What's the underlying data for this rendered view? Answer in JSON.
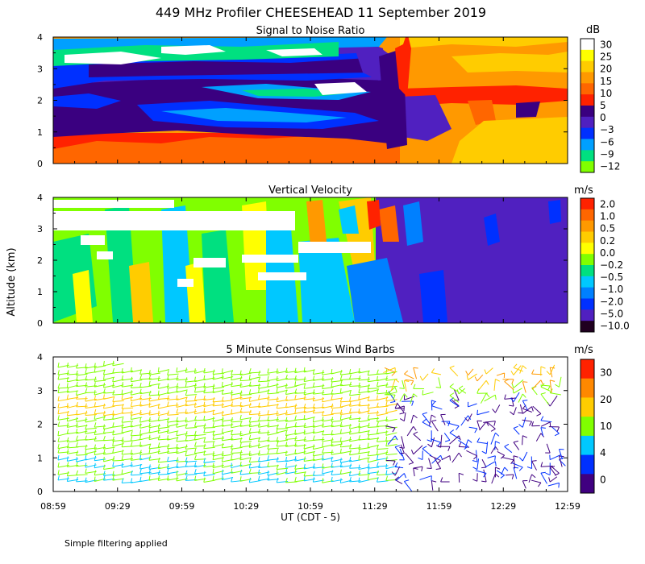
{
  "figure": {
    "title": "449 MHz Profiler CHEESEHEAD 11 September 2019",
    "ylabel": "Altitude (km)",
    "xlabel": "UT  (CDT - 5)",
    "note": "Simple filtering applied"
  },
  "chart_data": [
    {
      "type": "heatmap",
      "title": "Signal to Noise Ratio",
      "unit": "dB",
      "x_ticks": [
        "08:59",
        "09:29",
        "09:59",
        "10:29",
        "10:59",
        "11:29",
        "11:59",
        "12:29",
        "12:59"
      ],
      "x_range_hours_after_0859": [
        0,
        4
      ],
      "ylim": [
        0,
        4
      ],
      "y_ticks": [
        0,
        1,
        2,
        3,
        4
      ],
      "colorbar_labels": [
        "30",
        "25",
        "20",
        "15",
        "10",
        "5",
        "0",
        "−3",
        "−6",
        "−9",
        "−12"
      ],
      "colorbar_colors": [
        "#ffffff",
        "#ffff00",
        "#ffcc00",
        "#ff9900",
        "#ff6600",
        "#ff2200",
        "#3a0080",
        "#5020c0",
        "#0030ff",
        "#00a0ff",
        "#00e080",
        "#80ff00"
      ]
    },
    {
      "type": "heatmap",
      "title": "Vertical Velocity",
      "unit": "m/s",
      "x_ticks": [
        "08:59",
        "09:29",
        "09:59",
        "10:29",
        "10:59",
        "11:29",
        "11:59",
        "12:29",
        "12:59"
      ],
      "ylim": [
        0,
        4
      ],
      "y_ticks": [
        0,
        1,
        2,
        3,
        4
      ],
      "colorbar_labels": [
        "2.0",
        "1.0",
        "0.5",
        "0.2",
        "0.0",
        "−0.2",
        "−0.5",
        "−1.0",
        "−2.0",
        "−5.0",
        "−10.0"
      ],
      "colorbar_colors": [
        "#ff2200",
        "#ff6600",
        "#ff9900",
        "#ffcc00",
        "#ffff00",
        "#80ff00",
        "#00e080",
        "#00c8ff",
        "#0080ff",
        "#0030ff",
        "#5020c0",
        "#200020"
      ]
    },
    {
      "type": "wind_barbs",
      "title": "5 Minute Consensus Wind Barbs",
      "unit": "m/s",
      "x_ticks": [
        "08:59",
        "09:29",
        "09:59",
        "10:29",
        "10:59",
        "11:29",
        "11:59",
        "12:29",
        "12:59"
      ],
      "ylim": [
        0,
        4
      ],
      "y_ticks": [
        0,
        1,
        2,
        3,
        4
      ],
      "colorbar_labels": [
        "30",
        "20",
        "10",
        "4",
        "0"
      ],
      "colorbar_colors": [
        "#ff2200",
        "#ff8800",
        "#ffcc00",
        "#80ff00",
        "#00c8ff",
        "#0030ff",
        "#400080"
      ]
    }
  ]
}
